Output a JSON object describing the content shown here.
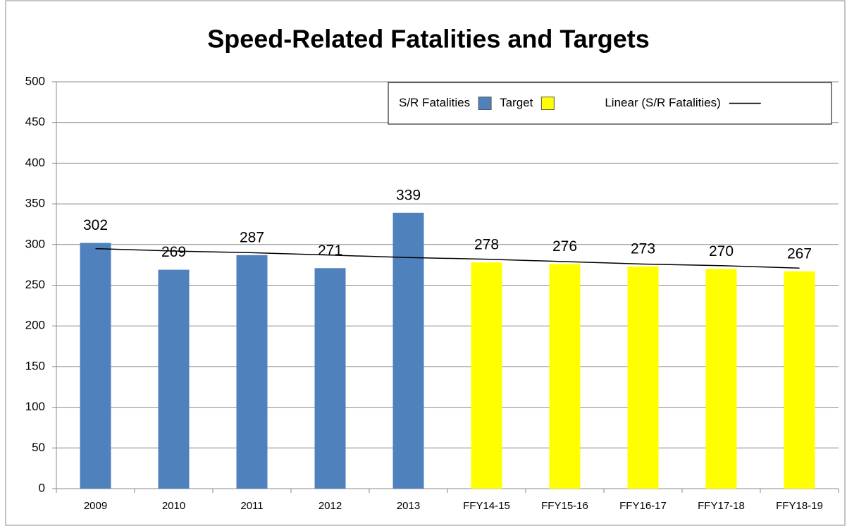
{
  "chart_data": {
    "type": "bar",
    "title": "Speed-Related Fatalities and Targets",
    "categories": [
      "2009",
      "2010",
      "2011",
      "2012",
      "2013",
      "FFY14-15",
      "FFY15-16",
      "FFY16-17",
      "FFY17-18",
      "FFY18-19"
    ],
    "series": [
      {
        "name": "S/R Fatalities",
        "color": "#4f81bd",
        "values": [
          302,
          269,
          287,
          271,
          339,
          null,
          null,
          null,
          null,
          null
        ]
      },
      {
        "name": "Target",
        "color": "#ffff00",
        "values": [
          null,
          null,
          null,
          null,
          null,
          278,
          276,
          273,
          270,
          267
        ]
      },
      {
        "name": "Linear (S/R Fatalities)",
        "type": "line",
        "color": "#000000",
        "values": [
          295,
          292,
          290,
          287,
          284,
          282,
          279,
          276,
          274,
          271
        ]
      }
    ],
    "ylim": [
      0,
      500
    ],
    "yticks": [
      0,
      50,
      100,
      150,
      200,
      250,
      300,
      350,
      400,
      450,
      500
    ],
    "grid": true,
    "legend": "top-right"
  }
}
